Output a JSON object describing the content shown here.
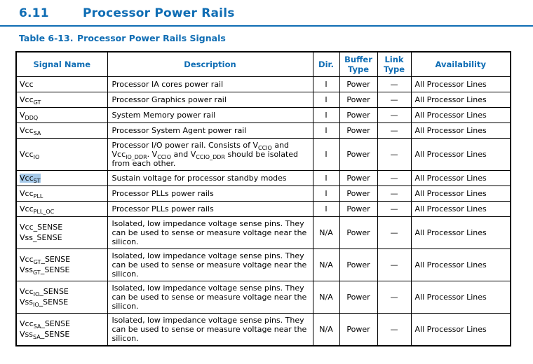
{
  "page": {
    "section_number": "6.11",
    "section_title": "Processor Power Rails",
    "caption_label": "Table 6-13.",
    "caption_title": "Processor Power Rails Signals"
  },
  "colors": {
    "heading_blue": "#0f6db4",
    "selection_highlight": "#a5c9e9"
  },
  "table": {
    "headers": [
      "Signal Name",
      "Description",
      "Dir.",
      "Buffer Type",
      "Link Type",
      "Availability"
    ],
    "rows": [
      {
        "signal": [
          [
            {
              "t": "Vcc"
            }
          ]
        ],
        "desc": [
          {
            "t": "Processor IA cores power rail"
          }
        ],
        "dir": "I",
        "buffer": "Power",
        "link": "—",
        "availability": "All Processor Lines",
        "highlight": false
      },
      {
        "signal": [
          [
            {
              "t": "Vcc"
            },
            {
              "t": "GT",
              "sub": true
            }
          ]
        ],
        "desc": [
          {
            "t": "Processor Graphics power rail"
          }
        ],
        "dir": "I",
        "buffer": "Power",
        "link": "—",
        "availability": "All Processor Lines",
        "highlight": false
      },
      {
        "signal": [
          [
            {
              "t": "V"
            },
            {
              "t": "DDQ",
              "sub": true
            }
          ]
        ],
        "desc": [
          {
            "t": "System Memory power rail"
          }
        ],
        "dir": "I",
        "buffer": "Power",
        "link": "—",
        "availability": "All Processor Lines",
        "highlight": false
      },
      {
        "signal": [
          [
            {
              "t": "Vcc"
            },
            {
              "t": "SA",
              "sub": true
            }
          ]
        ],
        "desc": [
          {
            "t": "Processor System Agent power rail"
          }
        ],
        "dir": "I",
        "buffer": "Power",
        "link": "—",
        "availability": "All Processor Lines",
        "highlight": false
      },
      {
        "signal": [
          [
            {
              "t": "Vcc"
            },
            {
              "t": "IO",
              "sub": true
            }
          ]
        ],
        "desc": [
          {
            "t": "Processor I/O power rail. Consists of V"
          },
          {
            "t": "CCIO",
            "sub": true
          },
          {
            "t": " and Vcc"
          },
          {
            "t": "IO_DDR",
            "sub": true
          },
          {
            "t": ". V"
          },
          {
            "t": "CCIO",
            "sub": true
          },
          {
            "t": " and V"
          },
          {
            "t": "CCIO_DDR",
            "sub": true
          },
          {
            "t": " should be isolated from each other."
          }
        ],
        "dir": "I",
        "buffer": "Power",
        "link": "—",
        "availability": "All Processor Lines",
        "highlight": false
      },
      {
        "signal": [
          [
            {
              "t": "Vcc"
            },
            {
              "t": "ST",
              "sub": true
            }
          ]
        ],
        "desc": [
          {
            "t": "Sustain voltage for processor standby modes"
          }
        ],
        "dir": "I",
        "buffer": "Power",
        "link": "—",
        "availability": "All Processor Lines",
        "highlight": true
      },
      {
        "signal": [
          [
            {
              "t": "Vcc"
            },
            {
              "t": "PLL",
              "sub": true
            }
          ]
        ],
        "desc": [
          {
            "t": "Processor PLLs power rails"
          }
        ],
        "dir": "I",
        "buffer": "Power",
        "link": "—",
        "availability": "All Processor Lines",
        "highlight": false
      },
      {
        "signal": [
          [
            {
              "t": "Vcc"
            },
            {
              "t": "PLL_OC",
              "sub": true
            }
          ]
        ],
        "desc": [
          {
            "t": "Processor PLLs power rails"
          }
        ],
        "dir": "I",
        "buffer": "Power",
        "link": "—",
        "availability": "All Processor Lines",
        "highlight": false
      },
      {
        "signal": [
          [
            {
              "t": "Vcc_SENSE"
            }
          ],
          [
            {
              "t": "Vss_SENSE"
            }
          ]
        ],
        "desc": [
          {
            "t": "Isolated, low impedance voltage sense pins. They can be used to sense or measure voltage near the silicon."
          }
        ],
        "dir": "N/A",
        "buffer": "Power",
        "link": "—",
        "availability": "All Processor Lines",
        "highlight": false
      },
      {
        "signal": [
          [
            {
              "t": "Vcc"
            },
            {
              "t": "GT",
              "sub": true
            },
            {
              "t": "_SENSE"
            }
          ],
          [
            {
              "t": "Vss"
            },
            {
              "t": "GT",
              "sub": true
            },
            {
              "t": "_SENSE"
            }
          ]
        ],
        "desc": [
          {
            "t": "Isolated, low impedance voltage sense pins. They can be used to sense or measure voltage near the silicon."
          }
        ],
        "dir": "N/A",
        "buffer": "Power",
        "link": "—",
        "availability": "All Processor Lines",
        "highlight": false
      },
      {
        "signal": [
          [
            {
              "t": "Vcc"
            },
            {
              "t": "IO",
              "sub": true
            },
            {
              "t": "_SENSE"
            }
          ],
          [
            {
              "t": "Vss"
            },
            {
              "t": "IO",
              "sub": true
            },
            {
              "t": "_SENSE"
            }
          ]
        ],
        "desc": [
          {
            "t": "Isolated, low impedance voltage sense pins. They can be used to sense or measure voltage near the silicon."
          }
        ],
        "dir": "N/A",
        "buffer": "Power",
        "link": "—",
        "availability": "All Processor Lines",
        "highlight": false
      },
      {
        "signal": [
          [
            {
              "t": "Vcc"
            },
            {
              "t": "SA",
              "sub": true
            },
            {
              "t": "_SENSE"
            }
          ],
          [
            {
              "t": "Vss"
            },
            {
              "t": "SA",
              "sub": true
            },
            {
              "t": "_SENSE"
            }
          ]
        ],
        "desc": [
          {
            "t": "Isolated, low impedance voltage sense pins. They can be used to sense or measure voltage near the silicon."
          }
        ],
        "dir": "N/A",
        "buffer": "Power",
        "link": "—",
        "availability": "All Processor Lines",
        "highlight": false
      }
    ]
  }
}
